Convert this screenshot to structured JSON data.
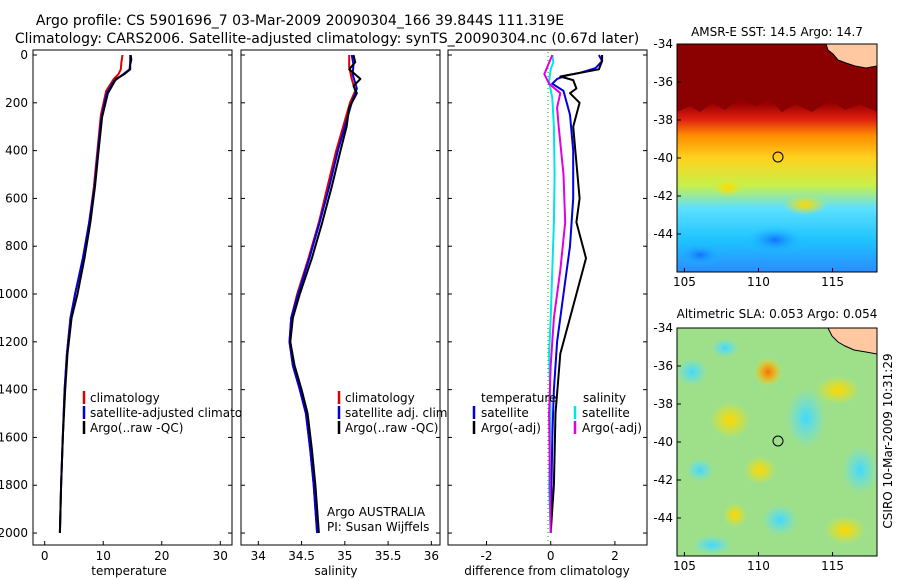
{
  "header": {
    "line1": "Argo profile: CS 5901696_7 03-Mar-2009 20090304_166 39.844S 111.319E",
    "line2": "Climatology: CARS2006. Satellite-adjusted climatology: synTS_20090304.nc (0.67d later)"
  },
  "side_label": "CSIRO 10-Mar-2009 10:31:29",
  "colors": {
    "climatology": "#e00000",
    "satellite": "#0000e0",
    "argo": "#000000",
    "salinity_sat": "#00e5e5",
    "salinity_argo": "#e000e0"
  },
  "chart_data": [
    {
      "type": "line",
      "xlabel": "temperature",
      "xlim": [
        -2,
        32
      ],
      "ylim": [
        0,
        2050
      ],
      "xticks": [
        "0",
        "10",
        "20",
        "30"
      ],
      "yticks": [
        "0",
        "200",
        "400",
        "600",
        "800",
        "1000",
        "1200",
        "1400",
        "1600",
        "1800",
        "2000"
      ],
      "legend": [
        "climatology",
        "satellite-adjusted climatology",
        "Argo(..raw -QC)"
      ],
      "series": [
        {
          "name": "climatology",
          "color": "#e00000",
          "points": [
            [
              13.3,
              0
            ],
            [
              13.1,
              30
            ],
            [
              13.0,
              60
            ],
            [
              12.6,
              80
            ],
            [
              11.8,
              100
            ],
            [
              10.5,
              150
            ],
            [
              9.6,
              250
            ],
            [
              9.0,
              400
            ],
            [
              8.4,
              550
            ],
            [
              7.6,
              700
            ],
            [
              6.6,
              850
            ],
            [
              5.2,
              1000
            ],
            [
              4.4,
              1100
            ],
            [
              3.8,
              1250
            ],
            [
              3.4,
              1400
            ],
            [
              3.1,
              1600
            ],
            [
              2.8,
              1800
            ],
            [
              2.6,
              2000
            ]
          ]
        },
        {
          "name": "satellite-adjusted climatology",
          "color": "#0000e0",
          "points": [
            [
              14.6,
              0
            ],
            [
              14.6,
              30
            ],
            [
              14.5,
              60
            ],
            [
              13.2,
              85
            ],
            [
              11.8,
              110
            ],
            [
              10.6,
              160
            ],
            [
              9.7,
              260
            ],
            [
              9.1,
              400
            ],
            [
              8.5,
              550
            ],
            [
              7.6,
              700
            ],
            [
              6.5,
              850
            ],
            [
              5.2,
              1000
            ],
            [
              4.4,
              1100
            ],
            [
              3.8,
              1250
            ],
            [
              3.4,
              1400
            ],
            [
              3.1,
              1600
            ],
            [
              2.8,
              1800
            ],
            [
              2.6,
              2000
            ]
          ]
        },
        {
          "name": "Argo(..raw -QC)",
          "color": "#000000",
          "points": [
            [
              14.7,
              0
            ],
            [
              14.8,
              20
            ],
            [
              14.6,
              40
            ],
            [
              14.6,
              60
            ],
            [
              13.6,
              80
            ],
            [
              12.2,
              100
            ],
            [
              10.8,
              160
            ],
            [
              9.8,
              260
            ],
            [
              9.2,
              400
            ],
            [
              8.6,
              550
            ],
            [
              7.8,
              700
            ],
            [
              6.8,
              850
            ],
            [
              5.6,
              1000
            ],
            [
              4.6,
              1100
            ],
            [
              3.9,
              1250
            ],
            [
              3.5,
              1400
            ],
            [
              3.1,
              1600
            ],
            [
              2.8,
              1800
            ],
            [
              2.6,
              2000
            ]
          ]
        }
      ]
    },
    {
      "type": "line",
      "xlabel": "salinity",
      "xlim": [
        33.8,
        36.1
      ],
      "ylim": [
        0,
        2050
      ],
      "xticks": [
        "34",
        "34.5",
        "35",
        "35.5",
        "36"
      ],
      "legend": [
        "climatology",
        "satellite adj. clim.",
        "Argo(..raw -QC)"
      ],
      "annotation": [
        "Argo AUSTRALIA",
        "PI: Susan Wijffels"
      ],
      "series": [
        {
          "name": "climatology",
          "color": "#e00000",
          "points": [
            [
              35.05,
              0
            ],
            [
              35.05,
              50
            ],
            [
              35.08,
              100
            ],
            [
              35.12,
              150
            ],
            [
              35.06,
              200
            ],
            [
              34.98,
              300
            ],
            [
              34.9,
              400
            ],
            [
              34.8,
              550
            ],
            [
              34.7,
              700
            ],
            [
              34.58,
              850
            ],
            [
              34.45,
              1000
            ],
            [
              34.38,
              1100
            ],
            [
              34.36,
              1200
            ],
            [
              34.4,
              1300
            ],
            [
              34.48,
              1400
            ],
            [
              34.55,
              1500
            ],
            [
              34.6,
              1650
            ],
            [
              34.64,
              1800
            ],
            [
              34.68,
              2000
            ]
          ]
        },
        {
          "name": "satellite adj. clim.",
          "color": "#0000e0",
          "points": [
            [
              35.08,
              0
            ],
            [
              35.1,
              40
            ],
            [
              35.09,
              80
            ],
            [
              35.14,
              140
            ],
            [
              35.08,
              200
            ],
            [
              35.0,
              300
            ],
            [
              34.92,
              400
            ],
            [
              34.82,
              550
            ],
            [
              34.71,
              700
            ],
            [
              34.59,
              850
            ],
            [
              34.46,
              1000
            ],
            [
              34.38,
              1100
            ],
            [
              34.36,
              1200
            ],
            [
              34.4,
              1300
            ],
            [
              34.48,
              1400
            ],
            [
              34.55,
              1500
            ],
            [
              34.6,
              1650
            ],
            [
              34.64,
              1800
            ],
            [
              34.68,
              2000
            ]
          ]
        },
        {
          "name": "Argo(..raw -QC)",
          "color": "#000000",
          "points": [
            [
              35.1,
              0
            ],
            [
              35.12,
              30
            ],
            [
              35.05,
              60
            ],
            [
              35.18,
              100
            ],
            [
              35.1,
              130
            ],
            [
              35.14,
              160
            ],
            [
              35.05,
              220
            ],
            [
              35.02,
              300
            ],
            [
              34.95,
              400
            ],
            [
              34.85,
              550
            ],
            [
              34.74,
              700
            ],
            [
              34.62,
              850
            ],
            [
              34.48,
              1000
            ],
            [
              34.4,
              1100
            ],
            [
              34.37,
              1200
            ],
            [
              34.42,
              1300
            ],
            [
              34.5,
              1400
            ],
            [
              34.57,
              1500
            ],
            [
              34.62,
              1650
            ],
            [
              34.66,
              1800
            ],
            [
              34.7,
              2000
            ]
          ]
        }
      ]
    },
    {
      "type": "line",
      "xlabel": "difference from climatology",
      "xlim": [
        -3.2,
        3.0
      ],
      "ylim": [
        0,
        2050
      ],
      "xticks": [
        "-2",
        "0",
        "2"
      ],
      "legend_left_title": "temperature",
      "legend_right_title": "salinity",
      "legend": [
        "satellite",
        "Argo(-adj)",
        "satellite",
        "Argo(-adj)"
      ],
      "series": [
        {
          "name": "temperature satellite",
          "color": "#0000e0",
          "points": [
            [
              1.5,
              0
            ],
            [
              1.6,
              25
            ],
            [
              1.4,
              55
            ],
            [
              0.9,
              75
            ],
            [
              0.5,
              85
            ],
            [
              0.2,
              100
            ],
            [
              0.05,
              120
            ],
            [
              0.4,
              150
            ],
            [
              0.6,
              250
            ],
            [
              0.7,
              400
            ],
            [
              0.7,
              600
            ],
            [
              0.6,
              800
            ],
            [
              0.4,
              1000
            ],
            [
              0.2,
              1200
            ],
            [
              0.1,
              1400
            ],
            [
              0.05,
              1600
            ],
            [
              0.0,
              2000
            ]
          ]
        },
        {
          "name": "temperature Argo(-adj)",
          "color": "#000000",
          "points": [
            [
              1.6,
              0
            ],
            [
              1.6,
              25
            ],
            [
              1.5,
              60
            ],
            [
              0.7,
              80
            ],
            [
              0.3,
              90
            ],
            [
              0.7,
              105
            ],
            [
              0.8,
              140
            ],
            [
              0.6,
              160
            ],
            [
              0.9,
              200
            ],
            [
              0.7,
              300
            ],
            [
              0.8,
              450
            ],
            [
              0.9,
              600
            ],
            [
              0.8,
              700
            ],
            [
              1.1,
              850
            ],
            [
              0.9,
              950
            ],
            [
              0.6,
              1100
            ],
            [
              0.3,
              1250
            ],
            [
              0.15,
              1500
            ],
            [
              0.1,
              1800
            ],
            [
              0.0,
              2000
            ]
          ]
        },
        {
          "name": "salinity satellite",
          "color": "#00e5e5",
          "points": [
            [
              0.05,
              0
            ],
            [
              0.08,
              30
            ],
            [
              0.0,
              60
            ],
            [
              -0.05,
              110
            ],
            [
              0.05,
              180
            ],
            [
              0.1,
              300
            ],
            [
              0.12,
              500
            ],
            [
              0.1,
              700
            ],
            [
              0.05,
              900
            ],
            [
              0.0,
              1100
            ],
            [
              -0.05,
              1250
            ],
            [
              0.0,
              1500
            ],
            [
              -0.05,
              1800
            ],
            [
              0.0,
              2000
            ]
          ]
        },
        {
          "name": "salinity Argo(-adj)",
          "color": "#e000e0",
          "points": [
            [
              0.05,
              0
            ],
            [
              -0.2,
              80
            ],
            [
              -0.05,
              120
            ],
            [
              0.3,
              160
            ],
            [
              0.2,
              220
            ],
            [
              0.25,
              300
            ],
            [
              0.4,
              500
            ],
            [
              0.45,
              700
            ],
            [
              0.3,
              900
            ],
            [
              0.1,
              1100
            ],
            [
              0.0,
              1300
            ],
            [
              -0.05,
              1500
            ],
            [
              0.0,
              2000
            ]
          ]
        }
      ]
    },
    {
      "type": "heatmap",
      "title": "AMSR-E SST: 14.5 Argo: 14.7",
      "xticks": [
        "105",
        "110",
        "115"
      ],
      "yticks": [
        "-34",
        "-36",
        "-38",
        "-40",
        "-42",
        "-44"
      ],
      "xlim": [
        104.5,
        118
      ],
      "ylim": [
        -46,
        -34
      ],
      "marker": {
        "lon": 111.3,
        "lat": -39.84
      }
    },
    {
      "type": "heatmap",
      "title": "Altimetric SLA: 0.053 Argo: 0.054",
      "xticks": [
        "105",
        "110",
        "115"
      ],
      "yticks": [
        "-34",
        "-36",
        "-38",
        "-40",
        "-42",
        "-44"
      ],
      "xlim": [
        104.5,
        118
      ],
      "ylim": [
        -46,
        -34
      ],
      "marker": {
        "lon": 111.3,
        "lat": -39.84
      }
    }
  ]
}
